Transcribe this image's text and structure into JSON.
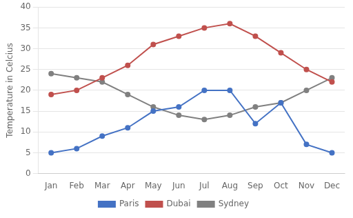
{
  "chart_data": {
    "type": "line",
    "categories": [
      "Jan",
      "Feb",
      "Mar",
      "Apr",
      "May",
      "Jun",
      "Jul",
      "Aug",
      "Sep",
      "Oct",
      "Nov",
      "Dec"
    ],
    "series": [
      {
        "name": "Paris",
        "color": "#4472C4",
        "values": [
          5,
          6,
          9,
          11,
          15,
          16,
          20,
          20,
          12,
          17,
          7,
          5
        ]
      },
      {
        "name": "Dubai",
        "color": "#C0504D",
        "values": [
          19,
          20,
          23,
          26,
          31,
          33,
          35,
          36,
          33,
          29,
          25,
          22
        ]
      },
      {
        "name": "Sydney",
        "color": "#808080",
        "values": [
          24,
          23,
          22,
          19,
          16,
          14,
          13,
          14,
          16,
          17,
          20,
          23
        ]
      }
    ],
    "ylabel": "Temperature in Celcius",
    "ylim": [
      0,
      40
    ],
    "yticks": [
      0,
      5,
      10,
      15,
      20,
      25,
      30,
      35,
      40
    ],
    "grid": "y",
    "legend": "bottom",
    "marker": "circle"
  }
}
